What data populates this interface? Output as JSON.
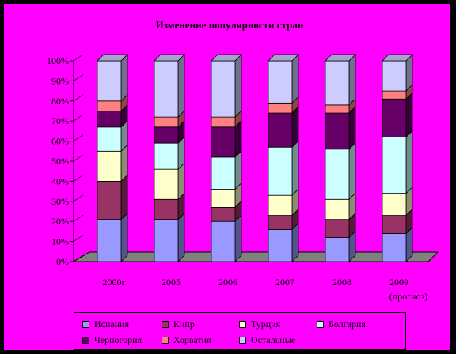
{
  "chart_data": {
    "type": "bar",
    "stacked": true,
    "percent": true,
    "title": "Изменение популярности стран",
    "categories": [
      "2000г",
      "2005",
      "2006",
      "2007",
      "2008",
      "2009 (прогноз)"
    ],
    "y_ticks": [
      "0%",
      "10%",
      "20%",
      "30%",
      "40%",
      "50%",
      "60%",
      "70%",
      "80%",
      "90%",
      "100%"
    ],
    "ylim": [
      0,
      100
    ],
    "grid": false,
    "legend_position": "bottom",
    "series": [
      {
        "name": "Испания",
        "color": "#9999ff",
        "values": [
          21,
          21,
          20,
          16,
          12,
          14
        ]
      },
      {
        "name": "Кипр",
        "color": "#993366",
        "values": [
          19,
          10,
          7,
          7,
          9,
          9
        ]
      },
      {
        "name": "Турция",
        "color": "#ffffcc",
        "values": [
          15,
          15,
          9,
          10,
          10,
          11
        ]
      },
      {
        "name": "Болгария",
        "color": "#ccffff",
        "values": [
          12,
          13,
          16,
          24,
          25,
          28
        ]
      },
      {
        "name": "Черногория",
        "color": "#660066",
        "values": [
          8,
          8,
          15,
          17,
          18,
          19
        ]
      },
      {
        "name": "Хорватия",
        "color": "#ff8080",
        "values": [
          5,
          5,
          5,
          5,
          4,
          4
        ]
      },
      {
        "name": "Остальные",
        "color": "#ccccff",
        "values": [
          20,
          28,
          28,
          21,
          22,
          15
        ]
      }
    ]
  }
}
